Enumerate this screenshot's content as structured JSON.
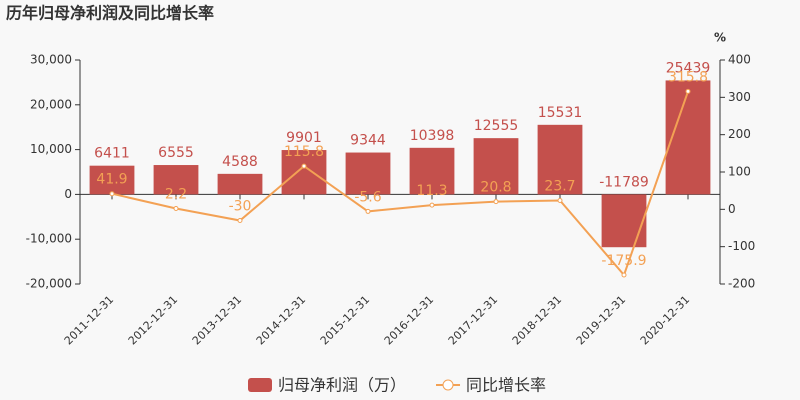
{
  "chart_data": {
    "type": "bar",
    "title": "历年归母净利润及同比增长率",
    "categories": [
      "2011-12-31",
      "2012-12-31",
      "2013-12-31",
      "2014-12-31",
      "2015-12-31",
      "2016-12-31",
      "2017-12-31",
      "2018-12-31",
      "2019-12-31",
      "2020-12-31"
    ],
    "series": [
      {
        "name": "归母净利润（万）",
        "type": "bar",
        "color": "#c4504c",
        "values": [
          6411,
          6555,
          4588,
          9901,
          9344,
          10398,
          12555,
          15531,
          -11789,
          25439
        ]
      },
      {
        "name": "同比增长率",
        "type": "line",
        "axis": "y2",
        "color": "#f3a154",
        "values": [
          41.9,
          2.2,
          -30,
          115.8,
          -5.6,
          11.3,
          20.8,
          23.7,
          -175.9,
          315.8
        ]
      }
    ],
    "ylim": [
      -20000,
      30000
    ],
    "yticks": [
      {
        "value": -20000,
        "label": "-20,000"
      },
      {
        "value": -10000,
        "label": "-10,000"
      },
      0,
      {
        "value": 10000,
        "label": "10,000"
      },
      {
        "value": 20000,
        "label": "20,000"
      },
      {
        "value": 30000,
        "label": "30,000"
      }
    ],
    "y2label": "%",
    "y2lim": [
      -200,
      400
    ],
    "y2ticks": [
      -200,
      -100,
      0,
      100,
      200,
      300,
      400
    ],
    "grid": false
  }
}
